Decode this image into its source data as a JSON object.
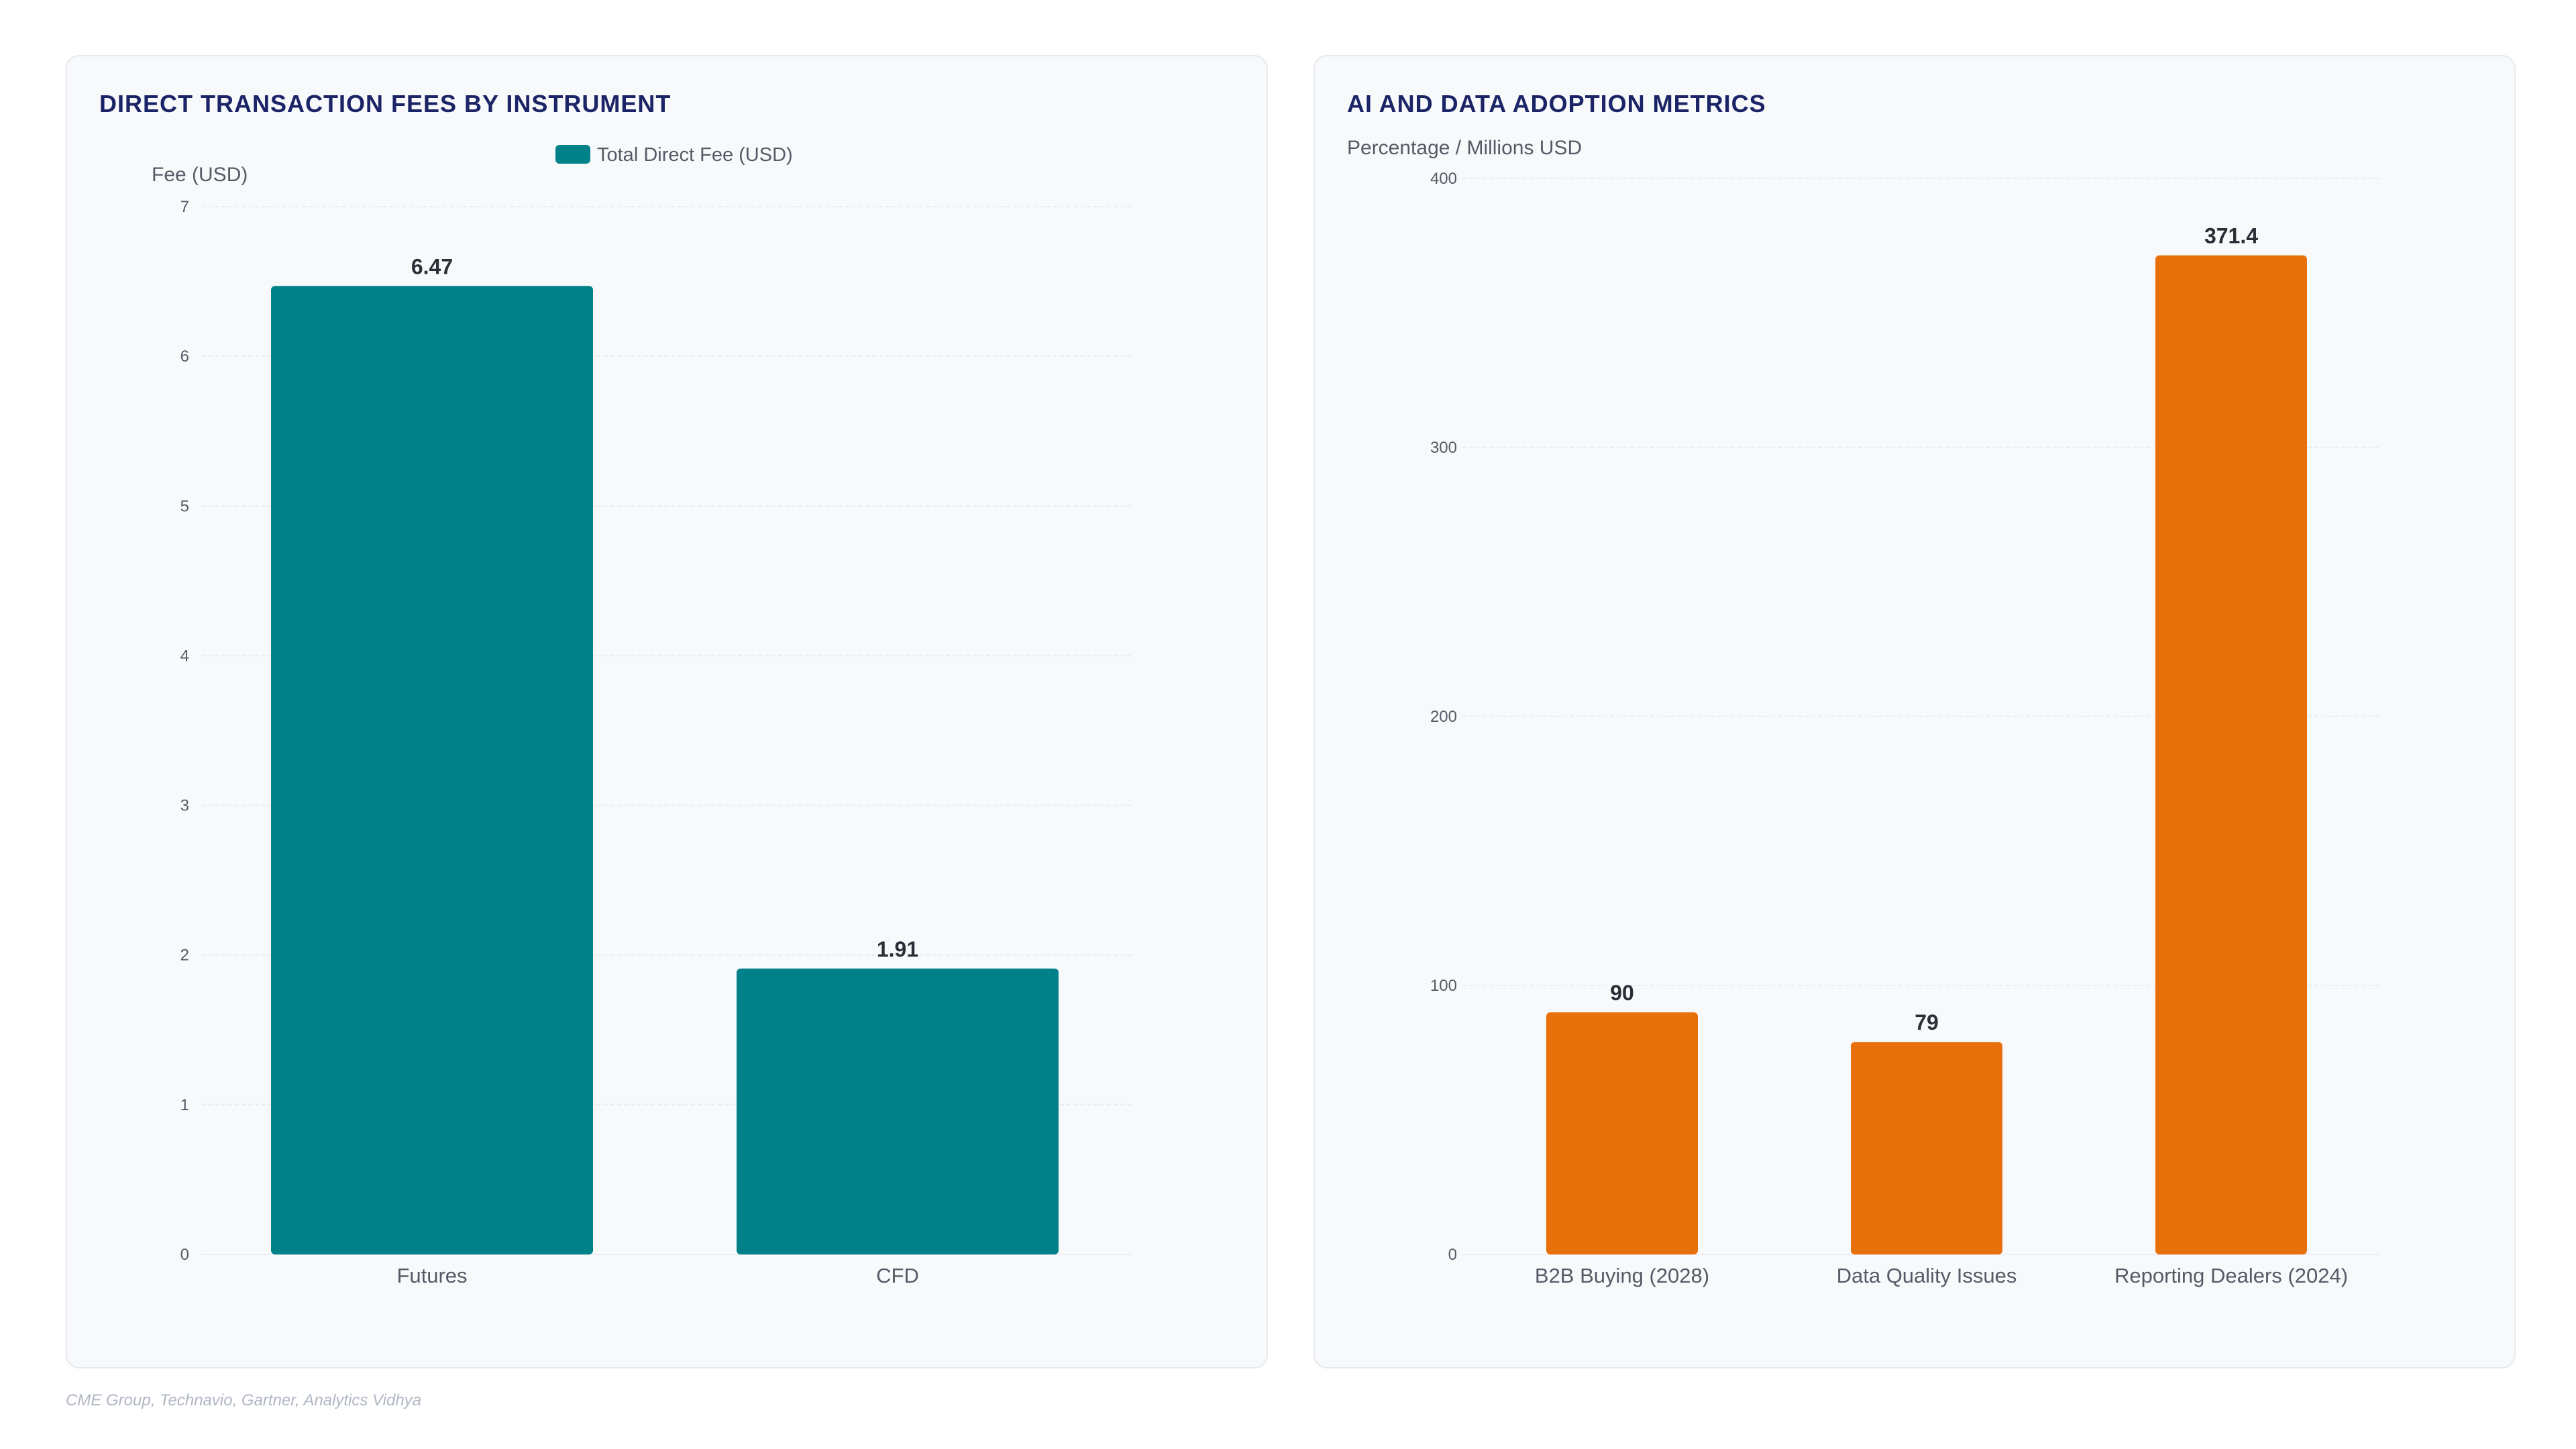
{
  "colors": {
    "teal": "#00818a",
    "orange": "#e8700a",
    "title": "#1b2466",
    "grid": "#e9ecf0",
    "tick": "#555b66",
    "label_text": "#2a2e36"
  },
  "source": "CME Group, Technavio, Gartner, Analytics Vidhya",
  "chart_data": [
    {
      "type": "bar",
      "title": "DIRECT TRANSACTION FEES BY INSTRUMENT",
      "ylabel": "Fee (USD)",
      "xlabel": "",
      "legend": {
        "label": "Total Direct Fee (USD)",
        "position": "top-center"
      },
      "categories": [
        "Futures",
        "CFD"
      ],
      "values": [
        6.47,
        1.91
      ],
      "value_labels": [
        "6.47",
        "1.91"
      ],
      "ylim": [
        0,
        7
      ],
      "yticks": [
        0,
        1,
        2,
        3,
        4,
        5,
        6,
        7
      ],
      "grid": true,
      "color": "#00818a"
    },
    {
      "type": "bar",
      "title": "AI AND DATA ADOPTION METRICS",
      "ylabel": "Percentage / Millions USD",
      "xlabel": "",
      "categories": [
        "B2B Buying (2028)",
        "Data Quality Issues",
        "Reporting Dealers (2024)"
      ],
      "values": [
        90,
        79,
        371.4
      ],
      "value_labels": [
        "90",
        "79",
        "371.4"
      ],
      "ylim": [
        0,
        400
      ],
      "yticks": [
        0,
        100,
        200,
        300,
        400
      ],
      "grid": true,
      "color": "#e8700a"
    }
  ]
}
